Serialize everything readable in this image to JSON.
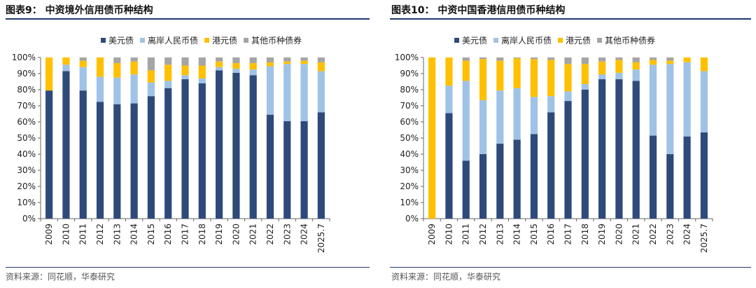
{
  "colors": {
    "usd": "#2e4a7a",
    "cnh": "#9fc3e6",
    "hkd": "#ffc000",
    "other": "#a5a5a5",
    "rule": "#1f3a6b"
  },
  "chart_data": [
    {
      "type": "bar",
      "stacked": true,
      "title": "图表9： 中资境外信用债币种结构",
      "source": "资料来源：同花顺，华泰研究",
      "categories": [
        "2009",
        "2010",
        "2011",
        "2012",
        "2013",
        "2014",
        "2015",
        "2016",
        "2017",
        "2018",
        "2019",
        "2020",
        "2021",
        "2022",
        "2023",
        "2024",
        "2025.7"
      ],
      "ylim": [
        0,
        100
      ],
      "yticks": [
        "0%",
        "10%",
        "20%",
        "30%",
        "40%",
        "50%",
        "60%",
        "70%",
        "80%",
        "90%",
        "100%"
      ],
      "legend": [
        "美元债",
        "离岸人民币债",
        "港元债",
        "其他币种债券"
      ],
      "legend_position": "top",
      "series": [
        {
          "name": "美元债",
          "key": "usd",
          "values": [
            79.5,
            91.5,
            79.5,
            72.5,
            71,
            71.5,
            76,
            81,
            86.5,
            84,
            92,
            90.5,
            89,
            64.5,
            60.5,
            60.5,
            66
          ]
        },
        {
          "name": "离岸人民币债",
          "key": "cnh",
          "values": [
            0,
            4,
            14.5,
            15.5,
            16.5,
            18,
            8.5,
            4.5,
            2.5,
            3,
            2,
            2.5,
            3.5,
            30,
            35.5,
            35.5,
            25.5
          ]
        },
        {
          "name": "港元债",
          "key": "hkd",
          "values": [
            20.5,
            4.5,
            4,
            12,
            9,
            8,
            7.5,
            10,
            6,
            8,
            3.5,
            3.5,
            4,
            2.5,
            1.5,
            2,
            5.5
          ]
        },
        {
          "name": "其他币种债券",
          "key": "other",
          "values": [
            0,
            0,
            2,
            0,
            3.5,
            2.5,
            8,
            4.5,
            5,
            5,
            2.5,
            3.5,
            3.5,
            3,
            2.5,
            2,
            3
          ]
        }
      ]
    },
    {
      "type": "bar",
      "stacked": true,
      "title": "图表10： 中资中国香港信用债币种结构",
      "source": "资料来源：同花顺，华泰研究",
      "categories": [
        "2009",
        "2010",
        "2011",
        "2012",
        "2013",
        "2014",
        "2015",
        "2016",
        "2017",
        "2018",
        "2019",
        "2020",
        "2021",
        "2022",
        "2023",
        "2024",
        "2025.7"
      ],
      "ylim": [
        0,
        100
      ],
      "yticks": [
        "0%",
        "10%",
        "20%",
        "30%",
        "40%",
        "50%",
        "60%",
        "70%",
        "80%",
        "90%",
        "100%"
      ],
      "legend": [
        "美元债",
        "离岸人民币债",
        "港元债",
        "其他币种债券"
      ],
      "legend_position": "top",
      "series": [
        {
          "name": "美元债",
          "key": "usd",
          "values": [
            0,
            65.5,
            36,
            40,
            46.5,
            49,
            52.5,
            66,
            73,
            80,
            86.5,
            86.5,
            85.5,
            51.5,
            40,
            51,
            53.5
          ]
        },
        {
          "name": "离岸人民币债",
          "key": "cnh",
          "values": [
            0,
            17,
            49.5,
            33.5,
            33,
            32,
            23,
            10,
            6,
            3.5,
            3,
            4,
            7,
            44,
            56,
            46,
            38
          ]
        },
        {
          "name": "港元债",
          "key": "hkd",
          "values": [
            100,
            17.5,
            12.5,
            25.5,
            18.5,
            18.5,
            23.5,
            22.5,
            17,
            12.5,
            8,
            8,
            4.5,
            3,
            2,
            3,
            8.5
          ]
        },
        {
          "name": "其他币种债券",
          "key": "other",
          "values": [
            0,
            0,
            2,
            1,
            2,
            0.5,
            1,
            1.5,
            4,
            4,
            2.5,
            1.5,
            3,
            1.5,
            2,
            0,
            0
          ]
        }
      ]
    }
  ]
}
